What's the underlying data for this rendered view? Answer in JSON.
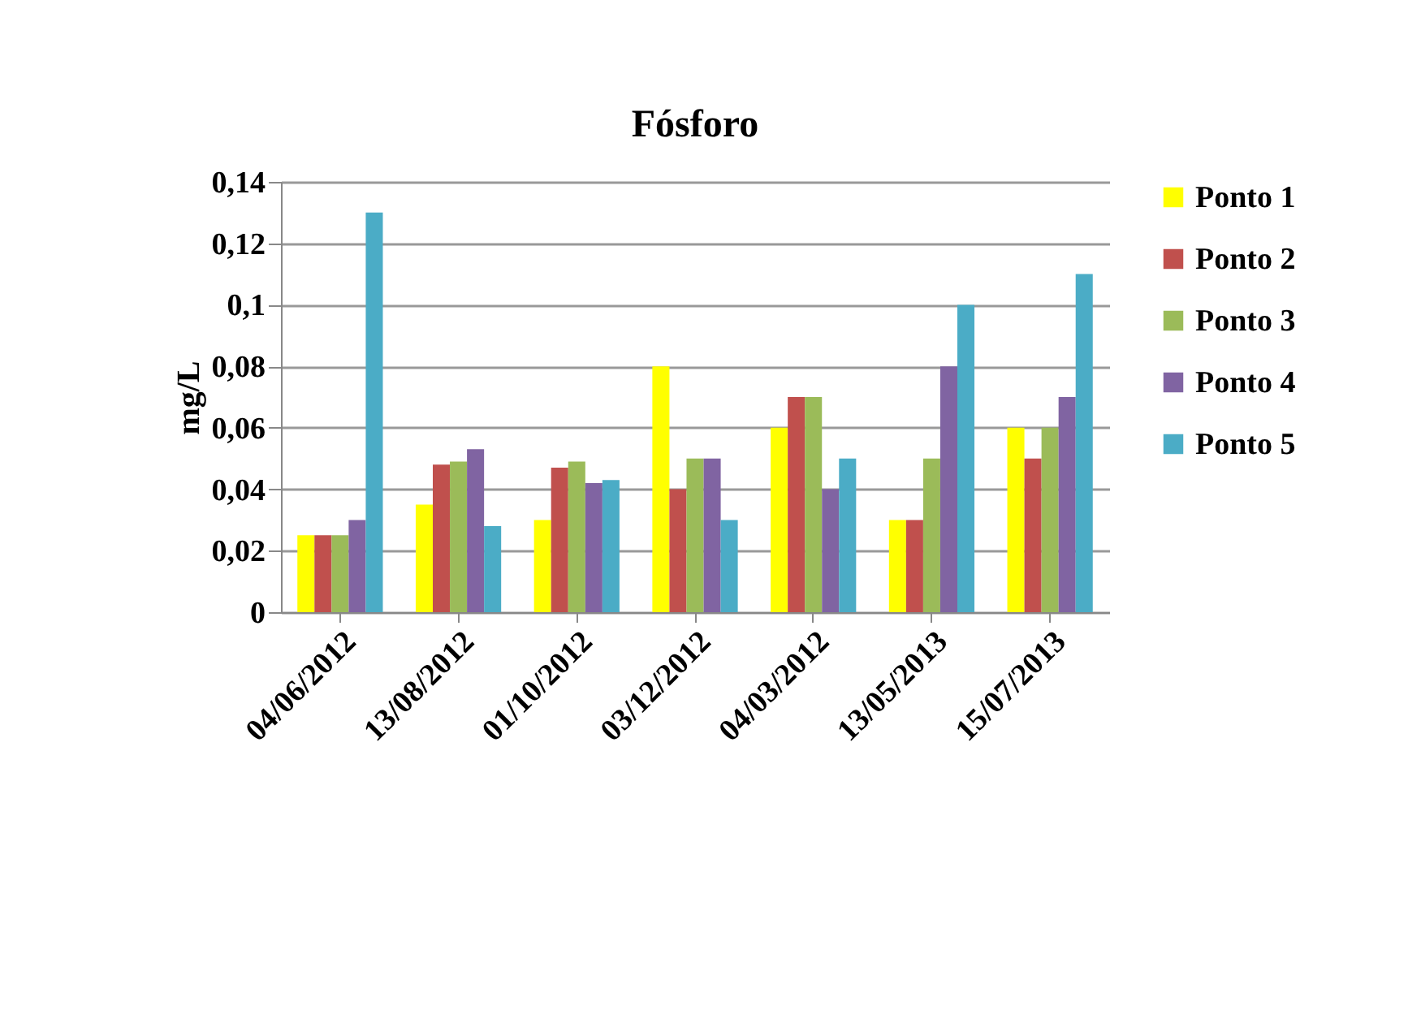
{
  "chart_data": {
    "type": "bar",
    "title": "Fósforo",
    "ylabel": "mg/L",
    "categories": [
      "04/06/2012",
      "13/08/2012",
      "01/10/2012",
      "03/12/2012",
      "04/03/2012",
      "13/05/2013",
      "15/07/2013"
    ],
    "series": [
      {
        "name": "Ponto 1",
        "color": "#ffff00",
        "values": [
          0.025,
          0.035,
          0.03,
          0.08,
          0.06,
          0.03,
          0.06
        ]
      },
      {
        "name": "Ponto 2",
        "color": "#c0504d",
        "values": [
          0.025,
          0.048,
          0.047,
          0.04,
          0.07,
          0.03,
          0.05
        ]
      },
      {
        "name": "Ponto 3",
        "color": "#9bbb59",
        "values": [
          0.025,
          0.049,
          0.049,
          0.05,
          0.07,
          0.05,
          0.06
        ]
      },
      {
        "name": "Ponto 4",
        "color": "#8064a2",
        "values": [
          0.03,
          0.053,
          0.042,
          0.05,
          0.04,
          0.08,
          0.07
        ]
      },
      {
        "name": "Ponto 5",
        "color": "#4bacc6",
        "values": [
          0.13,
          0.028,
          0.043,
          0.03,
          0.05,
          0.1,
          0.11
        ]
      }
    ],
    "ylim": [
      0,
      0.14
    ],
    "yticks": [
      0,
      {
        "value": 0.02,
        "label": "0,02"
      },
      {
        "value": 0.04,
        "label": "0,04"
      },
      {
        "value": 0.06,
        "label": "0,06"
      },
      {
        "value": 0.08,
        "label": "0,08"
      },
      {
        "value": 0.1,
        "label": "0,1"
      },
      {
        "value": 0.12,
        "label": "0,12"
      },
      {
        "value": 0.14,
        "label": "0,14"
      }
    ],
    "grid": "y",
    "legend": "right"
  }
}
